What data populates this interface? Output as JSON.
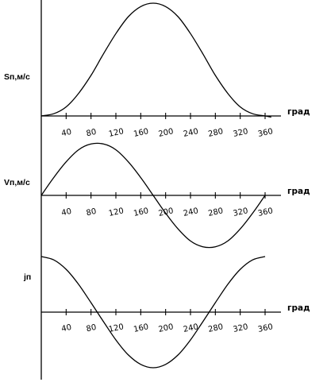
{
  "chart_data": [
    {
      "type": "line",
      "ylabel": "Sп,м/с",
      "xlabel": "град",
      "xticks": [
        "40",
        "80",
        "120",
        "160",
        "200",
        "240",
        "280",
        "320",
        "360"
      ],
      "xlim": [
        0,
        360
      ],
      "grid": false,
      "x": [
        0,
        20,
        40,
        60,
        80,
        100,
        120,
        140,
        160,
        180,
        200,
        220,
        240,
        260,
        280,
        300,
        320,
        340,
        360,
        370
      ],
      "values": [
        0,
        0.02,
        0.08,
        0.2,
        0.36,
        0.55,
        0.73,
        0.88,
        0.97,
        1.0,
        0.97,
        0.88,
        0.73,
        0.55,
        0.36,
        0.2,
        0.08,
        0.02,
        0,
        -0.01
      ]
    },
    {
      "type": "line",
      "ylabel": "Vп,м/с",
      "xlabel": "град",
      "xticks": [
        "40",
        "80",
        "120",
        "160",
        "200",
        "240",
        "280",
        "320",
        "360"
      ],
      "xlim": [
        0,
        360
      ],
      "grid": false,
      "x": [
        0,
        20,
        40,
        60,
        80,
        100,
        120,
        140,
        160,
        180,
        200,
        220,
        240,
        260,
        280,
        300,
        320,
        340,
        360
      ],
      "values": [
        0,
        0.34,
        0.64,
        0.87,
        0.98,
        0.98,
        0.87,
        0.64,
        0.34,
        0,
        -0.34,
        -0.64,
        -0.87,
        -0.98,
        -0.98,
        -0.87,
        -0.64,
        -0.34,
        0
      ]
    },
    {
      "type": "line",
      "ylabel": "jп",
      "xlabel": "град",
      "xticks": [
        "40",
        "80",
        "120",
        "160",
        "200",
        "240",
        "280",
        "320",
        "360"
      ],
      "xlim": [
        0,
        360
      ],
      "grid": false,
      "x": [
        0,
        20,
        40,
        60,
        80,
        100,
        120,
        140,
        160,
        180,
        200,
        220,
        240,
        260,
        280,
        300,
        320,
        340,
        360
      ],
      "values": [
        1,
        0.94,
        0.77,
        0.5,
        0.17,
        -0.17,
        -0.5,
        -0.77,
        -0.94,
        -1,
        -0.94,
        -0.77,
        -0.5,
        -0.17,
        0.17,
        0.5,
        0.77,
        0.94,
        1
      ]
    }
  ]
}
